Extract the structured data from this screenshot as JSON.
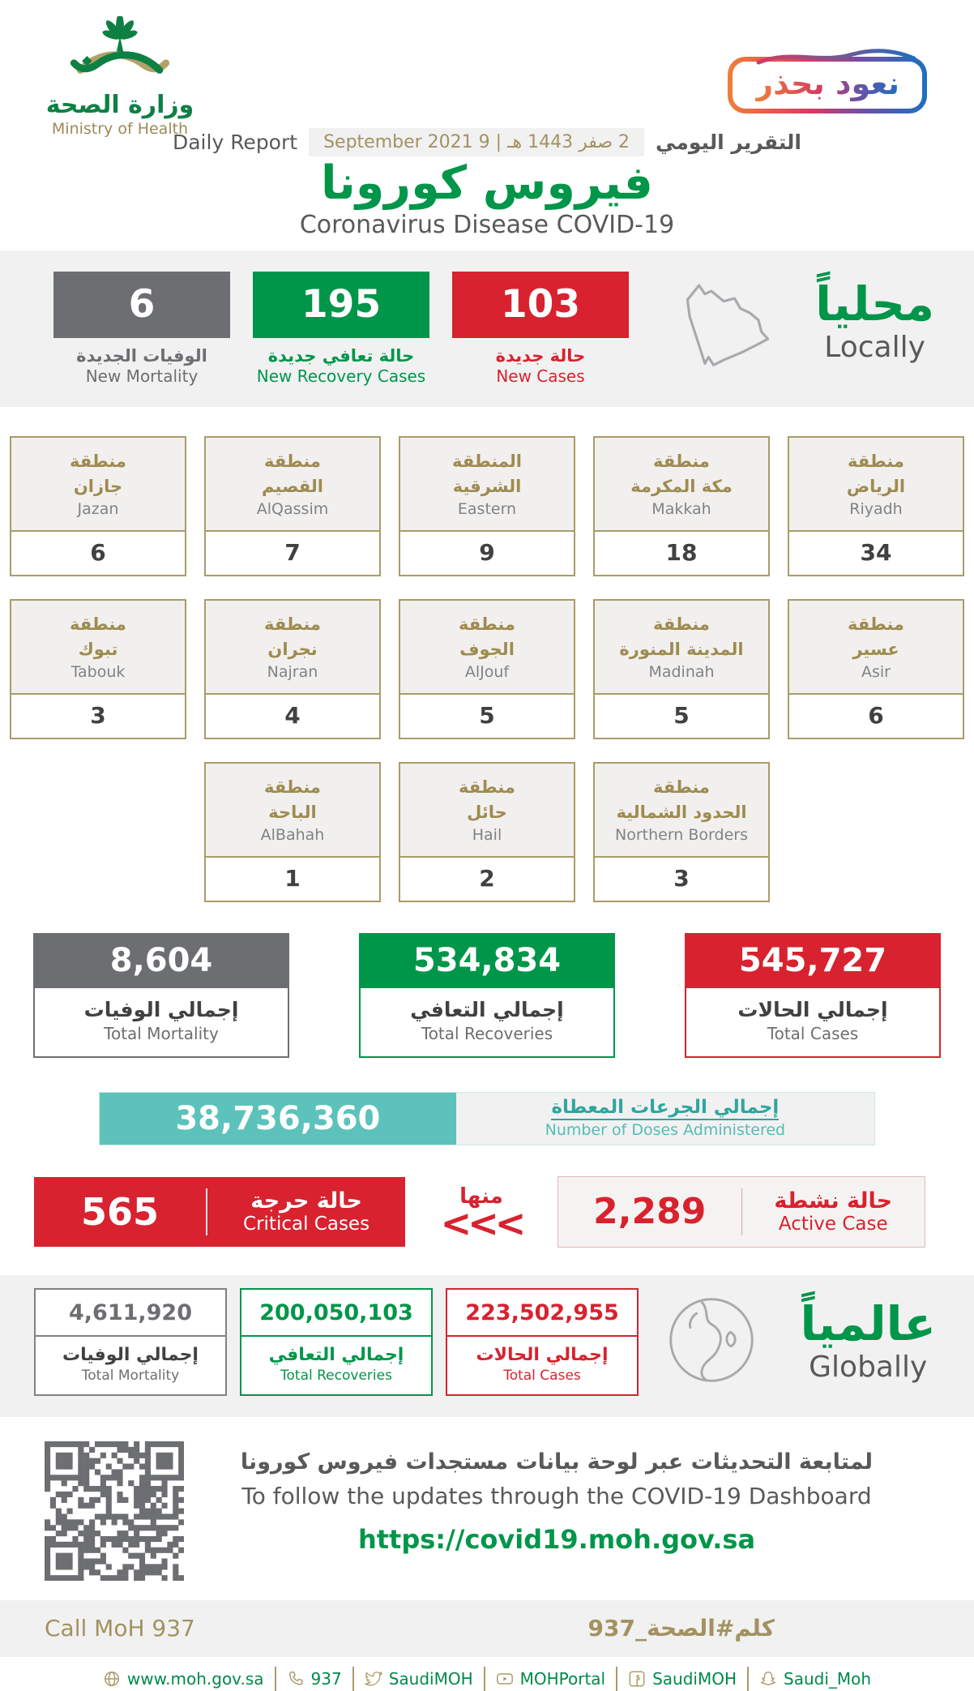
{
  "header": {
    "logo_title_ar": "وزارة الصحة",
    "logo_title_en": "Ministry of Health",
    "badge_text": "نعود بحذر"
  },
  "report_bar": {
    "label_en": "Daily Report",
    "date_text": "2 صفر 1443 هـ | 9 September 2021",
    "label_ar": "التقرير اليومي"
  },
  "title": {
    "ar": "فيروس كورونا",
    "en": "Coronavirus Disease COVID-19"
  },
  "locally": {
    "heading_ar": "محلياً",
    "heading_en": "Locally",
    "stats": [
      {
        "value": "6",
        "label_ar": "الوفيات الجديدة",
        "label_en": "New Mortality"
      },
      {
        "value": "195",
        "label_ar": "حالة تعافي جديدة",
        "label_en": "New Recovery Cases"
      },
      {
        "value": "103",
        "label_ar": "حالة جديدة",
        "label_en": "New Cases"
      }
    ]
  },
  "regions": {
    "rows": [
      {
        "cards": [
          {
            "ar1": "منطقة",
            "ar2": "جازان",
            "en": "Jazan",
            "value": "6"
          },
          {
            "ar1": "منطقة",
            "ar2": "القصيم",
            "en": "AlQassim",
            "value": "7"
          },
          {
            "ar1": "المنطقة",
            "ar2": "الشرقية",
            "en": "Eastern",
            "value": "9"
          },
          {
            "ar1": "منطقة",
            "ar2": "مكة المكرمة",
            "en": "Makkah",
            "value": "18"
          },
          {
            "ar1": "منطقة",
            "ar2": "الرياض",
            "en": "Riyadh",
            "value": "34"
          }
        ]
      },
      {
        "cards": [
          {
            "ar1": "منطقة",
            "ar2": "تبوك",
            "en": "Tabouk",
            "value": "3"
          },
          {
            "ar1": "منطقة",
            "ar2": "نجران",
            "en": "Najran",
            "value": "4"
          },
          {
            "ar1": "منطقة",
            "ar2": "الجوف",
            "en": "AlJouf",
            "value": "5"
          },
          {
            "ar1": "منطقة",
            "ar2": "المدينة المنورة",
            "en": "Madinah",
            "value": "5"
          },
          {
            "ar1": "منطقة",
            "ar2": "عسير",
            "en": "Asir",
            "value": "6"
          }
        ]
      },
      {
        "cards": [
          {
            "ar1": "منطقة",
            "ar2": "الباحة",
            "en": "AlBahah",
            "value": "1"
          },
          {
            "ar1": "منطقة",
            "ar2": "حائل",
            "en": "Hail",
            "value": "2"
          },
          {
            "ar1": "منطقة",
            "ar2": "الحدود الشمالية",
            "en": "Northern Borders",
            "value": "3"
          }
        ]
      }
    ]
  },
  "totals": [
    {
      "value": "8,604",
      "label_ar": "إجمالي الوفيات",
      "label_en": "Total Mortality"
    },
    {
      "value": "534,834",
      "label_ar": "إجمالي التعافي",
      "label_en": "Total Recoveries"
    },
    {
      "value": "545,727",
      "label_ar": "إجمالي الحالات",
      "label_en": "Total Cases"
    }
  ],
  "doses": {
    "value": "38,736,360",
    "label_ar": "إجمالي الجرعات المعطاة",
    "label_en": "Number of Doses Administered"
  },
  "critical": {
    "value": "565",
    "label_ar": "حالة حرجة",
    "label_en": "Critical Cases"
  },
  "of_which": {
    "label_ar": "منها",
    "chevrons": "<<<"
  },
  "active": {
    "value": "2,289",
    "label_ar": "حالة نشطة",
    "label_en": "Active Case"
  },
  "globally": {
    "heading_ar": "عالمياً",
    "heading_en": "Globally",
    "stats": [
      {
        "value": "4,611,920",
        "label_ar": "إجمالي الوفيات",
        "label_en": "Total Mortality"
      },
      {
        "value": "200,050,103",
        "label_ar": "إجمالي التعافي",
        "label_en": "Total Recoveries"
      },
      {
        "value": "223,502,955",
        "label_ar": "إجمالي الحالات",
        "label_en": "Total Cases"
      }
    ]
  },
  "dashboard": {
    "line_ar": "لمتابعة التحديثات عبر لوحة بيانات مستجدات فيروس كورونا",
    "line_en": "To follow the updates through the COVID-19 Dashboard",
    "url": "https://covid19.moh.gov.sa"
  },
  "footer": {
    "call_en": "Call MoH 937",
    "hashtag_ar": "كلم#الصحة_937"
  },
  "social": [
    {
      "icon": "globe-icon",
      "label": "www.moh.gov.sa"
    },
    {
      "icon": "phone-icon",
      "label": "937"
    },
    {
      "icon": "twitter-icon",
      "label": "SaudiMOH"
    },
    {
      "icon": "youtube-icon",
      "label": "MOHPortal"
    },
    {
      "icon": "facebook-icon",
      "label": "SaudiMOH"
    },
    {
      "icon": "snapchat-icon",
      "label": "Saudi_Moh"
    }
  ],
  "colors": {
    "green": "#00964a",
    "red": "#d8222f",
    "gray": "#6d6e71",
    "gold": "#a3925f",
    "teal": "#5cc2bb",
    "dark": "#414042"
  }
}
